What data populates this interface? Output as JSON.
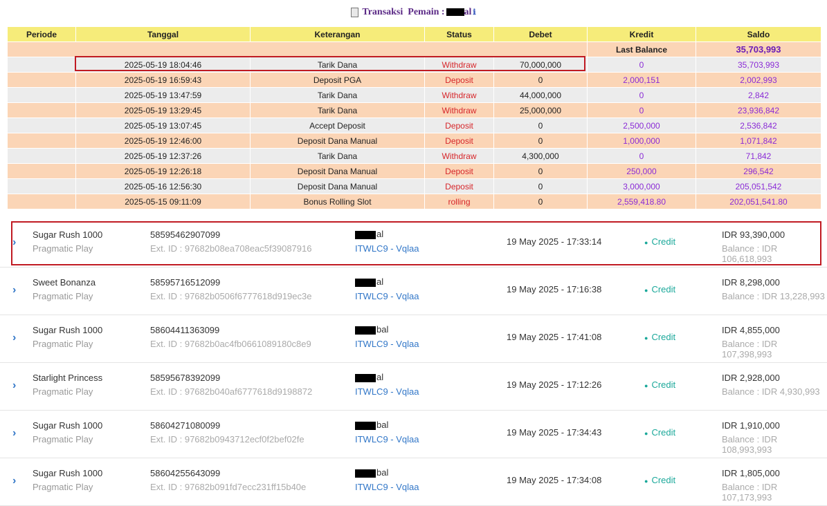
{
  "title": {
    "prefix": "Transaksi",
    "label": "Pemain :",
    "user_suffix": "al",
    "info_glyph": "ℹ"
  },
  "table": {
    "headers": [
      "Periode",
      "Tanggal",
      "Keterangan",
      "Status",
      "Debet",
      "Kredit",
      "Saldo"
    ],
    "last_balance_label": "Last Balance",
    "last_balance_value": "35,703,993",
    "rows": [
      {
        "tanggal": "2025-05-19 18:04:46",
        "keterangan": "Tarik Dana",
        "status": "Withdraw",
        "debet": "70,000,000",
        "kredit": "0",
        "saldo": "35,703,993"
      },
      {
        "tanggal": "2025-05-19 16:59:43",
        "keterangan": "Deposit PGA",
        "status": "Deposit",
        "debet": "0",
        "kredit": "2,000,151",
        "saldo": "2,002,993"
      },
      {
        "tanggal": "2025-05-19 13:47:59",
        "keterangan": "Tarik Dana",
        "status": "Withdraw",
        "debet": "44,000,000",
        "kredit": "0",
        "saldo": "2,842"
      },
      {
        "tanggal": "2025-05-19 13:29:45",
        "keterangan": "Tarik Dana",
        "status": "Withdraw",
        "debet": "25,000,000",
        "kredit": "0",
        "saldo": "23,936,842"
      },
      {
        "tanggal": "2025-05-19 13:07:45",
        "keterangan": "Accept Deposit",
        "status": "Deposit",
        "debet": "0",
        "kredit": "2,500,000",
        "saldo": "2,536,842"
      },
      {
        "tanggal": "2025-05-19 12:46:00",
        "keterangan": "Deposit Dana Manual",
        "status": "Deposit",
        "debet": "0",
        "kredit": "1,000,000",
        "saldo": "1,071,842"
      },
      {
        "tanggal": "2025-05-19 12:37:26",
        "keterangan": "Tarik Dana",
        "status": "Withdraw",
        "debet": "4,300,000",
        "kredit": "0",
        "saldo": "71,842"
      },
      {
        "tanggal": "2025-05-19 12:26:18",
        "keterangan": "Deposit Dana Manual",
        "status": "Deposit",
        "debet": "0",
        "kredit": "250,000",
        "saldo": "296,542"
      },
      {
        "tanggal": "2025-05-16 12:56:30",
        "keterangan": "Deposit Dana Manual",
        "status": "Deposit",
        "debet": "0",
        "kredit": "3,000,000",
        "saldo": "205,051,542"
      },
      {
        "tanggal": "2025-05-15 09:11:09",
        "keterangan": "Bonus Rolling Slot",
        "status": "rolling",
        "debet": "0",
        "kredit": "2,559,418.80",
        "saldo": "202,051,541.80"
      }
    ]
  },
  "bets": [
    {
      "game": "Sugar Rush 1000",
      "provider": "Pragmatic Play",
      "txn_id": "58595462907099",
      "ext_id": "Ext. ID : 97682b08ea708eac5f39087916",
      "user_suffix": "al",
      "agent": "ITWLC9 - Vqlaa",
      "datetime": "19 May 2025 - 17:33:14",
      "type": "Credit",
      "amount": "IDR 93,390,000",
      "balance": "Balance : IDR 106,618,993"
    },
    {
      "game": "Sweet Bonanza",
      "provider": "Pragmatic Play",
      "txn_id": "58595716512099",
      "ext_id": "Ext. ID : 97682b0506f6777618d919ec3e",
      "user_suffix": "al",
      "agent": "ITWLC9 - Vqlaa",
      "datetime": "19 May 2025 - 17:16:38",
      "type": "Credit",
      "amount": "IDR 8,298,000",
      "balance": "Balance : IDR 13,228,993"
    },
    {
      "game": "Sugar Rush 1000",
      "provider": "Pragmatic Play",
      "txn_id": "58604411363099",
      "ext_id": "Ext. ID : 97682b0ac4fb0661089180c8e9",
      "user_suffix": "bal",
      "agent": "ITWLC9 - Vqlaa",
      "datetime": "19 May 2025 - 17:41:08",
      "type": "Credit",
      "amount": "IDR 4,855,000",
      "balance": "Balance : IDR 107,398,993"
    },
    {
      "game": "Starlight Princess",
      "provider": "Pragmatic Play",
      "txn_id": "58595678392099",
      "ext_id": "Ext. ID : 97682b040af6777618d9198872",
      "user_suffix": "al",
      "agent": "ITWLC9 - Vqlaa",
      "datetime": "19 May 2025 - 17:12:26",
      "type": "Credit",
      "amount": "IDR 2,928,000",
      "balance": "Balance : IDR 4,930,993"
    },
    {
      "game": "Sugar Rush 1000",
      "provider": "Pragmatic Play",
      "txn_id": "58604271080099",
      "ext_id": "Ext. ID : 97682b0943712ecf0f2bef02fe",
      "user_suffix": "bal",
      "agent": "ITWLC9 - Vqlaa",
      "datetime": "19 May 2025 - 17:34:43",
      "type": "Credit",
      "amount": "IDR 1,910,000",
      "balance": "Balance : IDR 108,993,993"
    },
    {
      "game": "Sugar Rush 1000",
      "provider": "Pragmatic Play",
      "txn_id": "58604255643099",
      "ext_id": "Ext. ID : 97682b091fd7ecc231ff15b40e",
      "user_suffix": "bal",
      "agent": "ITWLC9 - Vqlaa",
      "datetime": "19 May 2025 - 17:34:08",
      "type": "Credit",
      "amount": "IDR 1,805,000",
      "balance": "Balance : IDR 107,173,993"
    }
  ]
}
